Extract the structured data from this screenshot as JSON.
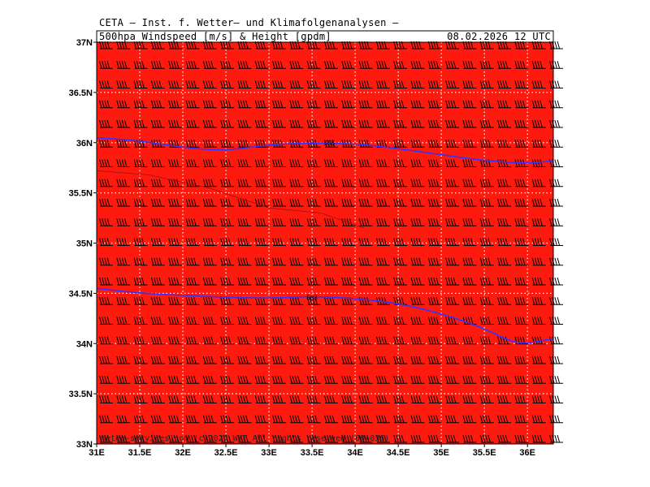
{
  "header": {
    "institute": "CETA – Inst. f. Wetter– und Klimafolgenanalysen –",
    "product": "500hpa Windspeed [m/s] & Height [gpdm]",
    "valid_time": "08.02.2026 12 UTC"
  },
  "footer": {
    "credit": "meteo-services.com (c)2026 WKF All rights reserved (00+036)"
  },
  "map": {
    "lon_range": [
      31.0,
      36.3
    ],
    "lat_range": [
      33.0,
      37.0
    ],
    "background_color": "#ff1a10",
    "barb_color": "#000000",
    "contour_color": "#3333ff",
    "gridline_style": "dotted-white",
    "lon_ticks": [
      "31E",
      "31.5E",
      "32E",
      "32.5E",
      "33E",
      "33.5E",
      "34E",
      "34.5E",
      "35E",
      "35.5E",
      "36E"
    ],
    "lat_ticks": [
      "37N",
      "36.5N",
      "36N",
      "35.5N",
      "35N",
      "34.5N",
      "34N",
      "33.5N",
      "33N"
    ],
    "contours": [
      {
        "label": "556",
        "label_at": [
          33.7,
          36.0
        ],
        "points": [
          [
            31.0,
            36.05
          ],
          [
            31.5,
            36.02
          ],
          [
            32.0,
            35.95
          ],
          [
            32.5,
            35.92
          ],
          [
            33.0,
            35.98
          ],
          [
            33.5,
            36.0
          ],
          [
            34.0,
            35.99
          ],
          [
            34.5,
            35.94
          ],
          [
            35.0,
            35.88
          ],
          [
            35.5,
            35.82
          ],
          [
            36.0,
            35.79
          ],
          [
            36.3,
            35.82
          ]
        ]
      },
      {
        "label": "563",
        "label_at": [
          33.5,
          34.46
        ],
        "points": [
          [
            31.0,
            34.55
          ],
          [
            31.5,
            34.5
          ],
          [
            32.0,
            34.48
          ],
          [
            32.5,
            34.46
          ],
          [
            33.0,
            34.45
          ],
          [
            33.5,
            34.47
          ],
          [
            34.0,
            34.45
          ],
          [
            34.5,
            34.4
          ],
          [
            35.0,
            34.3
          ],
          [
            35.5,
            34.15
          ],
          [
            35.8,
            34.02
          ],
          [
            36.0,
            34.0
          ],
          [
            36.3,
            34.05
          ]
        ]
      }
    ]
  }
}
